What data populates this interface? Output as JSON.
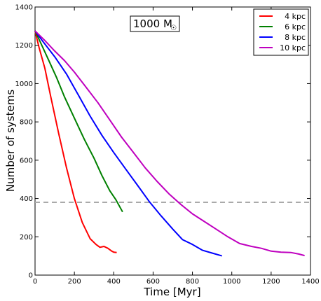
{
  "chart_data": {
    "type": "line",
    "title": "",
    "annotation": {
      "text": "1000 M",
      "symbol": "☉"
    },
    "xlabel": "Time [Myr]",
    "ylabel": "Number of systems",
    "xlim": [
      0,
      1400
    ],
    "ylim": [
      0,
      1400
    ],
    "xticks": [
      0,
      200,
      400,
      600,
      800,
      1000,
      1200,
      1400
    ],
    "yticks": [
      0,
      200,
      400,
      600,
      800,
      1000,
      1200,
      1400
    ],
    "grid": false,
    "legend_position": "top-right",
    "reference_line": {
      "y": 380,
      "style": "dashed",
      "color": "#aaaaaa"
    },
    "series": [
      {
        "name": "4 kpc",
        "color": "#ff0000",
        "x": [
          0,
          20,
          50,
          80,
          120,
          160,
          200,
          240,
          280,
          310,
          330,
          350,
          370,
          390,
          400,
          415
        ],
        "y": [
          1275,
          1190,
          1080,
          930,
          740,
          560,
          400,
          275,
          190,
          160,
          145,
          150,
          140,
          125,
          120,
          118
        ]
      },
      {
        "name": "6 kpc",
        "color": "#008000",
        "x": [
          0,
          30,
          70,
          110,
          150,
          200,
          250,
          300,
          340,
          380,
          410,
          445
        ],
        "y": [
          1275,
          1210,
          1120,
          1030,
          930,
          820,
          710,
          610,
          520,
          440,
          395,
          330
        ]
      },
      {
        "name": "8 kpc",
        "color": "#0000ff",
        "x": [
          0,
          40,
          100,
          160,
          220,
          280,
          340,
          400,
          460,
          520,
          580,
          640,
          700,
          750,
          800,
          850,
          900,
          950
        ],
        "y": [
          1275,
          1220,
          1140,
          1050,
          940,
          830,
          730,
          640,
          555,
          470,
          385,
          310,
          240,
          185,
          160,
          130,
          115,
          100
        ]
      },
      {
        "name": "10 kpc",
        "color": "#bf00bf",
        "x": [
          0,
          50,
          100,
          150,
          200,
          260,
          320,
          380,
          440,
          500,
          560,
          620,
          680,
          740,
          800,
          860,
          920,
          980,
          1040,
          1100,
          1150,
          1200,
          1250,
          1300,
          1340,
          1370
        ],
        "y": [
          1275,
          1225,
          1170,
          1120,
          1060,
          980,
          900,
          810,
          720,
          640,
          560,
          490,
          425,
          370,
          320,
          280,
          240,
          200,
          165,
          150,
          140,
          125,
          120,
          118,
          110,
          102
        ]
      }
    ]
  }
}
